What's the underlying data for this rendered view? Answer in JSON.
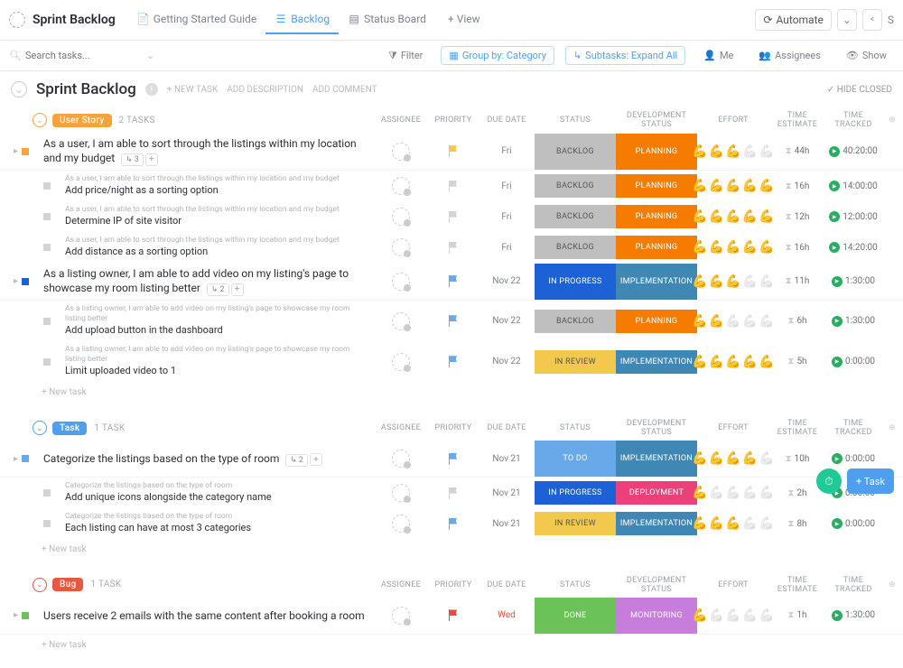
{
  "header": {
    "title": "Sprint Backlog",
    "tabs": [
      {
        "label": "Getting Started Guide",
        "icon": "doc"
      },
      {
        "label": "Backlog",
        "icon": "list",
        "active": true
      },
      {
        "label": "Status Board",
        "icon": "board"
      }
    ],
    "addView": "+ View",
    "automate": "Automate"
  },
  "filterBar": {
    "searchPlaceholder": "Search tasks...",
    "filter": "Filter",
    "groupBy": "Group by: Category",
    "subtasks": "Subtasks: Expand All",
    "me": "Me",
    "assignees": "Assignees",
    "show": "Show"
  },
  "section": {
    "title": "Sprint Backlog",
    "newTask": "+ NEW TASK",
    "addDesc": "ADD DESCRIPTION",
    "addComment": "ADD COMMENT",
    "hideClosed": "HIDE CLOSED"
  },
  "columns": {
    "assignee": "ASSIGNEE",
    "priority": "PRIORITY",
    "dueDate": "DUE DATE",
    "status": "STATUS",
    "devStatus": "DEVELOPMENT STATUS",
    "effort": "EFFORT",
    "timeEst": "TIME ESTIMATE",
    "timeTracked": "TIME TRACKED"
  },
  "newTaskLabel": "+ New task",
  "colors": {
    "userStory": "#f7a23b",
    "task": "#4f9ff0",
    "bug": "#e8573f",
    "backlog": "#bfbfbf",
    "planning": "#f57c00",
    "inProgress": "#1c61d6",
    "implementation": "#3f88b5",
    "inReview": "#f2c94c",
    "todo": "#6aa9e9",
    "deployment": "#ec407a",
    "done": "#6ac259",
    "monitoring": "#c77ddb",
    "flagYellow": "#f2c94c",
    "flagBlue": "#6aa9e9",
    "flagRed": "#e74c3c",
    "flagGray": "#d0d4d9"
  },
  "groups": [
    {
      "tag": "User Story",
      "tagColorKey": "userStory",
      "count": "2 TASKS",
      "rows": [
        {
          "type": "parent",
          "title": "As a user, I am able to sort through the listings within my location and my budget",
          "subtaskCount": "3",
          "flag": "flagYellow",
          "due": "Fri",
          "status": "BACKLOG",
          "statusColor": "backlog",
          "dev": "PLANNING",
          "devColor": "planning",
          "effort": 3,
          "timeEst": "44h",
          "timeTrack": "40:20:00",
          "sq": "#f7a23b"
        },
        {
          "type": "sub",
          "crumb": "As a user, I am able to sort through the listings within my location and my budget",
          "title": "Add price/night as a sorting option",
          "flag": "flagGray",
          "due": "Fri",
          "status": "BACKLOG",
          "statusColor": "backlog",
          "dev": "PLANNING",
          "devColor": "planning",
          "effort": 5,
          "timeEst": "16h",
          "timeTrack": "14:00:00"
        },
        {
          "type": "sub",
          "crumb": "As a user, I am able to sort through the listings within my location and my budget",
          "title": "Determine IP of site visitor",
          "flag": "flagGray",
          "due": "Fri",
          "status": "BACKLOG",
          "statusColor": "backlog",
          "dev": "PLANNING",
          "devColor": "planning",
          "effort": 5,
          "timeEst": "12h",
          "timeTrack": "12:00:00"
        },
        {
          "type": "sub",
          "crumb": "As a user, I am able to sort through the listings within my location and my budget",
          "title": "Add distance as a sorting option",
          "flag": "flagGray",
          "due": "Fri",
          "status": "BACKLOG",
          "statusColor": "backlog",
          "dev": "PLANNING",
          "devColor": "planning",
          "effort": 5,
          "timeEst": "16h",
          "timeTrack": "14:20:00"
        },
        {
          "type": "parent",
          "title": "As a listing owner, I am able to add video on my listing's page to showcase my room listing better",
          "subtaskCount": "2",
          "flag": "flagBlue",
          "due": "Nov 22",
          "status": "IN PROGRESS",
          "statusColor": "inProgress",
          "dev": "IMPLEMENTATION",
          "devColor": "implementation",
          "effort": 3,
          "timeEst": "11h",
          "timeTrack": "1:30:00",
          "sq": "#1c61d6"
        },
        {
          "type": "sub",
          "crumb": "As a listing owner, I am able to add video on my listing's page to showcase my room listing better",
          "title": "Add upload button in the dashboard",
          "flag": "flagBlue",
          "due": "Nov 22",
          "status": "BACKLOG",
          "statusColor": "backlog",
          "dev": "PLANNING",
          "devColor": "planning",
          "effort": 2,
          "timeEst": "6h",
          "timeTrack": "1:30:00"
        },
        {
          "type": "sub",
          "crumb": "As a listing owner, I am able to add video on my listing's page to showcase my room listing better",
          "title": "Limit uploaded video to 1",
          "flag": "flagBlue",
          "due": "Nov 22",
          "status": "IN REVIEW",
          "statusColor": "inReview",
          "dev": "IMPLEMENTATION",
          "devColor": "implementation",
          "effort": 5,
          "timeEst": "5h",
          "timeTrack": "0:00:00"
        }
      ]
    },
    {
      "tag": "Task",
      "tagColorKey": "task",
      "count": "1 TASK",
      "rows": [
        {
          "type": "parent",
          "title": "Categorize the listings based on the type of room",
          "subtaskCount": "2",
          "flag": "flagBlue",
          "due": "Nov 21",
          "status": "TO DO",
          "statusColor": "todo",
          "dev": "IMPLEMENTATION",
          "devColor": "implementation",
          "effort": 4,
          "timeEst": "10h",
          "timeTrack": "0:00:00",
          "sq": "#6aa9e9"
        },
        {
          "type": "sub",
          "crumb": "Categorize the listings based on the type of room",
          "title": "Add unique icons alongside the category name",
          "flag": "flagGray",
          "due": "Nov 21",
          "status": "IN PROGRESS",
          "statusColor": "inProgress",
          "dev": "DEPLOYMENT",
          "devColor": "deployment",
          "effort": 1,
          "timeEst": "2h",
          "timeTrack": "0:00:00"
        },
        {
          "type": "sub",
          "crumb": "Categorize the listings based on the type of room",
          "title": "Each listing can have at most 3 categories",
          "flag": "flagBlue",
          "due": "Nov 21",
          "status": "IN REVIEW",
          "statusColor": "inReview",
          "dev": "IMPLEMENTATION",
          "devColor": "implementation",
          "effort": 3,
          "timeEst": "8h",
          "timeTrack": "0:00:00"
        }
      ]
    },
    {
      "tag": "Bug",
      "tagColorKey": "bug",
      "count": "1 TASK",
      "rows": [
        {
          "type": "parent",
          "title": "Users receive 2 emails with the same content after booking a room",
          "flag": "flagRed",
          "due": "Wed",
          "dueColor": "#e74c3c",
          "status": "DONE",
          "statusColor": "done",
          "dev": "MONITORING",
          "devColor": "monitoring",
          "effort": 1,
          "timeEst": "1h",
          "timeTrack": "1:30:00",
          "sq": "#6ac259"
        }
      ]
    }
  ]
}
